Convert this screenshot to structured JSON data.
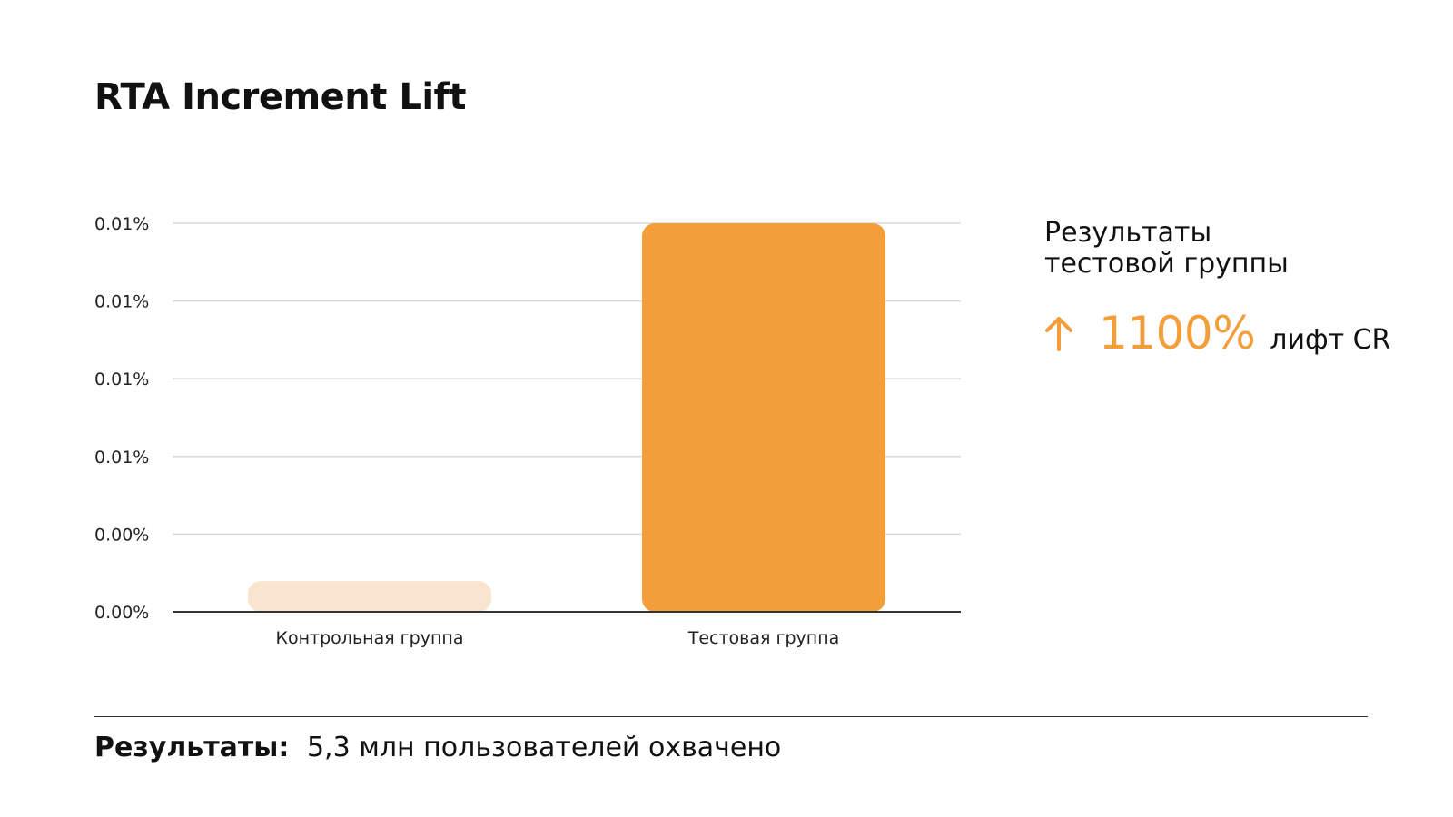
{
  "title": "RTA Increment Lift",
  "colors": {
    "accent": "#F29E3A",
    "control_bar": "#F9E4CF",
    "grid": "#D9D9D9",
    "axis": "#333333"
  },
  "chart_data": {
    "type": "bar",
    "categories": [
      "Контрольная группа",
      "Тестовая группа"
    ],
    "values": [
      0.0008,
      0.0101
    ],
    "ytick_labels": [
      "0.00%",
      "0.00%",
      "0.01%",
      "0.01%",
      "0.01%",
      "0.01%"
    ],
    "ylim": [
      0,
      0.0101
    ],
    "grid": true,
    "bar_colors": [
      "#F9E4CF",
      "#F29E3A"
    ]
  },
  "side_panel": {
    "heading_line1": "Результаты",
    "heading_line2": "тестовой группы",
    "icon": "arrow-up-icon",
    "lift_value": "1100%",
    "lift_label": "лифт CR"
  },
  "footer": {
    "label": "Результаты:",
    "text": "5,3 млн пользователей охвачено"
  }
}
